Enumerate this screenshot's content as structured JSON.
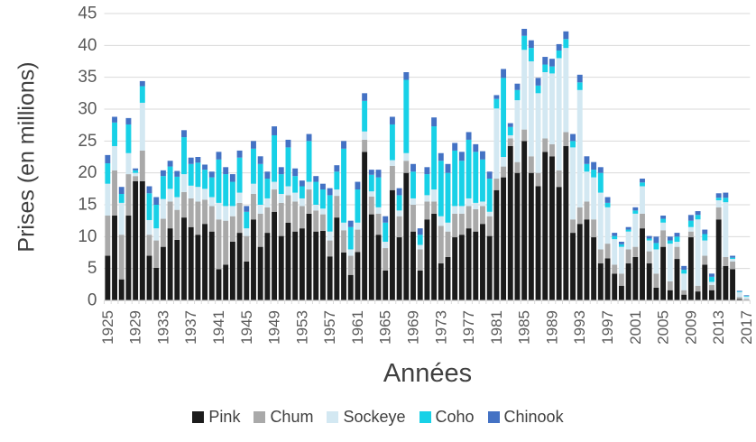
{
  "chart_data": {
    "type": "bar",
    "stacked": true,
    "title": "",
    "xlabel": "Années",
    "ylabel": "Prises (en millions)",
    "ylim": [
      0,
      45
    ],
    "y_ticks": [
      0,
      5,
      10,
      15,
      20,
      25,
      30,
      35,
      40,
      45
    ],
    "grid": true,
    "legend_position": "bottom",
    "years_start": 1925,
    "years_end": 2017,
    "x_tick_interval": 4,
    "x_tick_labels": [
      "1925",
      "1929",
      "1933",
      "1937",
      "1941",
      "1945",
      "1949",
      "1953",
      "1957",
      "1961",
      "1965",
      "1969",
      "1973",
      "1977",
      "1981",
      "1985",
      "1989",
      "1993",
      "1997",
      "2001",
      "2005",
      "2009",
      "2013",
      "2017"
    ],
    "series": [
      {
        "name": "Pink",
        "color": "#1b1b1b",
        "values": [
          7.0,
          13.3,
          3.3,
          13.3,
          18.7,
          18.7,
          7.0,
          5.1,
          8.4,
          11.3,
          9.5,
          13.0,
          11.5,
          10.3,
          12.0,
          10.8,
          4.9,
          5.6,
          9.2,
          10.6,
          6.1,
          12.7,
          8.4,
          10.6,
          13.9,
          10.1,
          12.2,
          10.8,
          11.3,
          13.6,
          10.8,
          10.9,
          6.9,
          13.0,
          7.5,
          4.0,
          7.6,
          23.3,
          13.5,
          10.3,
          4.7,
          17.3,
          9.9,
          20.0,
          10.8,
          4.7,
          12.7,
          13.6,
          5.8,
          6.8,
          9.9,
          10.3,
          11.3,
          10.8,
          12.0,
          10.1,
          17.3,
          19.3,
          24.2,
          20.0,
          25.0,
          20.0,
          17.9,
          23.3,
          22.6,
          17.8,
          24.2,
          10.6,
          12.0,
          12.7,
          9.9,
          5.8,
          6.6,
          4.2,
          2.3,
          5.8,
          6.8,
          11.3,
          5.8,
          2.0,
          8.4,
          1.6,
          6.5,
          0.9,
          9.9,
          1.4,
          5.6,
          1.6,
          12.7,
          5.4,
          4.9,
          0.2,
          0.1
        ]
      },
      {
        "name": "Chum",
        "color": "#a9a9a9",
        "values": [
          6.3,
          7.1,
          7.0,
          6.5,
          0.8,
          4.8,
          3.3,
          4.3,
          4.4,
          4.2,
          4.7,
          4.0,
          4.5,
          5.2,
          3.8,
          4.0,
          7.8,
          6.9,
          4.0,
          4.7,
          4.0,
          4.0,
          5.2,
          4.0,
          3.5,
          5.2,
          4.3,
          4.7,
          3.5,
          3.8,
          3.3,
          2.6,
          2.5,
          3.4,
          3.5,
          3.0,
          3.5,
          1.9,
          2.8,
          3.3,
          3.5,
          3.8,
          3.3,
          1.9,
          4.2,
          3.3,
          2.8,
          1.9,
          5.9,
          4.0,
          3.7,
          3.3,
          3.5,
          3.5,
          2.8,
          3.1,
          1.8,
          1.7,
          1.2,
          1.7,
          1.8,
          2.6,
          2.1,
          2.1,
          1.9,
          2.6,
          2.2,
          2.1,
          2.6,
          2.8,
          2.8,
          2.2,
          2.3,
          1.4,
          1.9,
          2.2,
          1.6,
          2.3,
          1.9,
          2.2,
          2.6,
          1.4,
          1.9,
          0.7,
          0.9,
          0.9,
          1.4,
          0.8,
          1.9,
          1.4,
          1.2,
          0.3,
          0.1
        ]
      },
      {
        "name": "Sockeye",
        "color": "#d3e8f2",
        "values": [
          5.0,
          3.8,
          5.0,
          3.3,
          0.5,
          7.5,
          2.3,
          1.9,
          3.1,
          2.0,
          2.0,
          2.8,
          2.0,
          2.3,
          1.7,
          1.4,
          2.6,
          2.3,
          1.6,
          1.6,
          1.2,
          1.6,
          1.4,
          1.4,
          1.2,
          1.4,
          1.4,
          1.4,
          1.2,
          1.2,
          0.9,
          0.9,
          1.4,
          1.0,
          1.2,
          1.0,
          1.1,
          1.3,
          0.8,
          1.0,
          1.0,
          0.9,
          0.9,
          1.2,
          1.0,
          0.7,
          1.0,
          1.9,
          1.5,
          1.4,
          1.2,
          1.2,
          1.2,
          1.0,
          0.7,
          0.7,
          11.0,
          1.5,
          0.5,
          9.7,
          12.5,
          14.9,
          12.5,
          10.4,
          11.1,
          17.6,
          13.2,
          11.3,
          18.4,
          4.7,
          6.6,
          8.9,
          5.7,
          4.0,
          4.2,
          2.8,
          5.2,
          4.3,
          1.7,
          3.8,
          1.2,
          5.9,
          0.8,
          2.6,
          0.7,
          10.4,
          2.4,
          0.5,
          1.1,
          8.6,
          0.4,
          0.8,
          0.4
        ]
      },
      {
        "name": "Coho",
        "color": "#18d1e7",
        "values": [
          3.2,
          3.7,
          1.4,
          4.5,
          0.4,
          2.6,
          4.2,
          3.7,
          3.6,
          3.5,
          3.2,
          5.8,
          3.4,
          3.8,
          3.0,
          3.1,
          6.8,
          5.0,
          3.8,
          5.5,
          2.6,
          5.5,
          6.4,
          3.1,
          7.3,
          3.1,
          6.1,
          2.6,
          1.9,
          6.4,
          3.6,
          3.0,
          5.7,
          2.8,
          11.6,
          3.5,
          5.2,
          4.8,
          2.6,
          4.7,
          3.0,
          5.6,
          2.4,
          11.5,
          4.2,
          1.6,
          3.3,
          9.9,
          8.7,
          7.8,
          8.7,
          7.1,
          9.2,
          8.0,
          6.6,
          5.2,
          1.5,
          12.4,
          1.3,
          1.6,
          2.2,
          2.1,
          1.2,
          1.2,
          1.1,
          1.2,
          1.4,
          1.0,
          1.2,
          1.2,
          1.2,
          3.1,
          0.7,
          0.5,
          0.4,
          0.3,
          0.5,
          0.6,
          0.3,
          1.0,
          0.6,
          0.5,
          0.8,
          0.6,
          1.0,
          0.7,
          1.0,
          0.8,
          0.4,
          0.7,
          0.2,
          0.1,
          0.1
        ]
      },
      {
        "name": "Chinook",
        "color": "#4472c4",
        "values": [
          1.3,
          0.9,
          1.1,
          1.0,
          0.3,
          0.8,
          1.1,
          1.2,
          0.9,
          0.9,
          0.9,
          1.1,
          1.0,
          0.9,
          0.8,
          0.9,
          1.2,
          1.1,
          1.2,
          1.1,
          0.9,
          1.2,
          1.2,
          1.1,
          1.4,
          1.1,
          1.2,
          1.2,
          0.9,
          1.1,
          0.9,
          0.9,
          1.1,
          1.0,
          1.2,
          1.0,
          1.2,
          1.2,
          0.8,
          1.2,
          1.0,
          1.2,
          1.1,
          1.2,
          1.2,
          1.0,
          1.1,
          1.4,
          1.2,
          1.4,
          1.2,
          1.4,
          1.2,
          1.2,
          1.3,
          1.1,
          0.6,
          1.4,
          0.6,
          1.0,
          1.1,
          1.2,
          1.2,
          1.2,
          1.2,
          1.0,
          1.2,
          1.1,
          1.2,
          1.2,
          1.2,
          0.9,
          0.9,
          0.5,
          0.4,
          0.4,
          0.5,
          0.6,
          0.4,
          1.0,
          0.5,
          0.6,
          0.6,
          0.6,
          0.9,
          0.6,
          0.7,
          0.5,
          0.7,
          0.8,
          0.3,
          0.1,
          0.1
        ]
      }
    ]
  },
  "colors": {
    "background": "#ffffff",
    "gridline": "#d9d9d9",
    "axis_line": "#bfbfbf",
    "tick_text": "#595959",
    "title_text": "#404040"
  }
}
